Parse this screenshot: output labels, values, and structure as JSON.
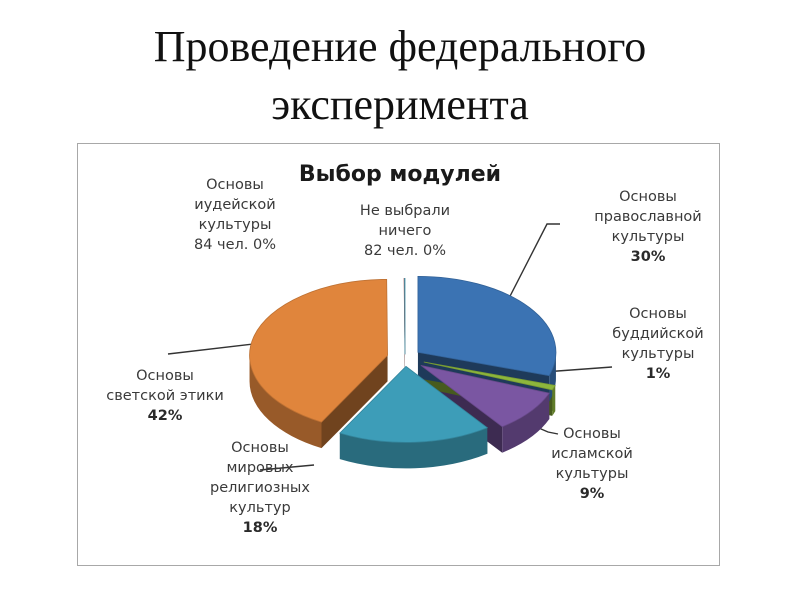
{
  "slide": {
    "title_line1": "Проведение федерального",
    "title_line2": "эксперимента"
  },
  "chart_data": {
    "type": "pie",
    "title": "Выбор модулей",
    "slices": [
      {
        "key": "orthodox",
        "label_lines": [
          "Основы",
          "православной",
          "культуры"
        ],
        "value_text": "30%",
        "value": 30,
        "color": "#3b73b3"
      },
      {
        "key": "buddhist",
        "label_lines": [
          "Основы",
          "буддийской",
          "культуры"
        ],
        "value_text": "1%",
        "value": 1,
        "color": "#8db63c"
      },
      {
        "key": "islamic",
        "label_lines": [
          "Основы",
          "исламской",
          "культуры"
        ],
        "value_text": "9%",
        "value": 9,
        "color": "#7a56a2"
      },
      {
        "key": "world_religions",
        "label_lines": [
          "Основы",
          "мировых",
          "религиозных",
          "культур"
        ],
        "value_text": "18%",
        "value": 18,
        "color": "#3d9db8"
      },
      {
        "key": "secular",
        "label_lines": [
          "Основы",
          "светской этики"
        ],
        "value_text": "42%",
        "value": 42,
        "color": "#e0853c"
      },
      {
        "key": "jewish",
        "label_lines": [
          "Основы",
          "иудейской",
          "культуры"
        ],
        "value_text": "84 чел.  0%",
        "value": 0.05,
        "color": "#c0504d"
      },
      {
        "key": "none",
        "label_lines": [
          "Не выбрали",
          "ничего"
        ],
        "value_text": "82 чел.  0%",
        "value": 0.05,
        "color": "#4bacc6"
      }
    ]
  }
}
